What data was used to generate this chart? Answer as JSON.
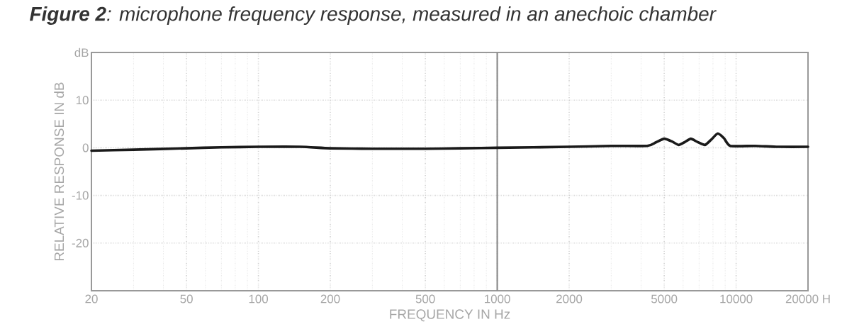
{
  "chart_data": {
    "type": "line",
    "title": "**Figure 2**: microphone frequency response, measured in an anechoic chamber",
    "xlabel": "FREQUENCY IN Hz",
    "ylabel": "RELATIVE RESPONSE IN dB",
    "log": "x",
    "grid": true,
    "marker": "none",
    "line_style": "solid",
    "xlim": [
      20,
      20000
    ],
    "ylim": [
      -30,
      20
    ],
    "xticks": [
      20,
      50,
      100,
      200,
      500,
      1000,
      2000,
      5000,
      10000,
      {
        "value": 20000,
        "label": "20000 H"
      }
    ],
    "yticks": [
      {
        "value": 20,
        "label": "dB"
      },
      10,
      0,
      -10,
      -20
    ],
    "ref_lines": [
      {
        "axis": "x",
        "value": 1000,
        "color": "#8c8c8c",
        "line_style": "solid"
      }
    ],
    "x": [
      20,
      30,
      50,
      70,
      100,
      150,
      200,
      300,
      500,
      700,
      1000,
      2000,
      3000,
      4240,
      4600,
      5000,
      5400,
      5750,
      6100,
      6460,
      6900,
      7410,
      7900,
      8380,
      8900,
      9460,
      12000,
      15000,
      20000
    ],
    "series": [
      {
        "color": "#1a1a1a",
        "values": [
          -0.6,
          -0.4,
          -0.1,
          0.1,
          0.2,
          0.2,
          -0.1,
          -0.2,
          -0.2,
          -0.1,
          0,
          0.2,
          0.4,
          0.4,
          1.1,
          1.9,
          1.3,
          0.6,
          1.2,
          1.9,
          1.2,
          0.6,
          1.8,
          3.0,
          2.0,
          0.4,
          0.4,
          0.2,
          0.2
        ]
      }
    ]
  }
}
